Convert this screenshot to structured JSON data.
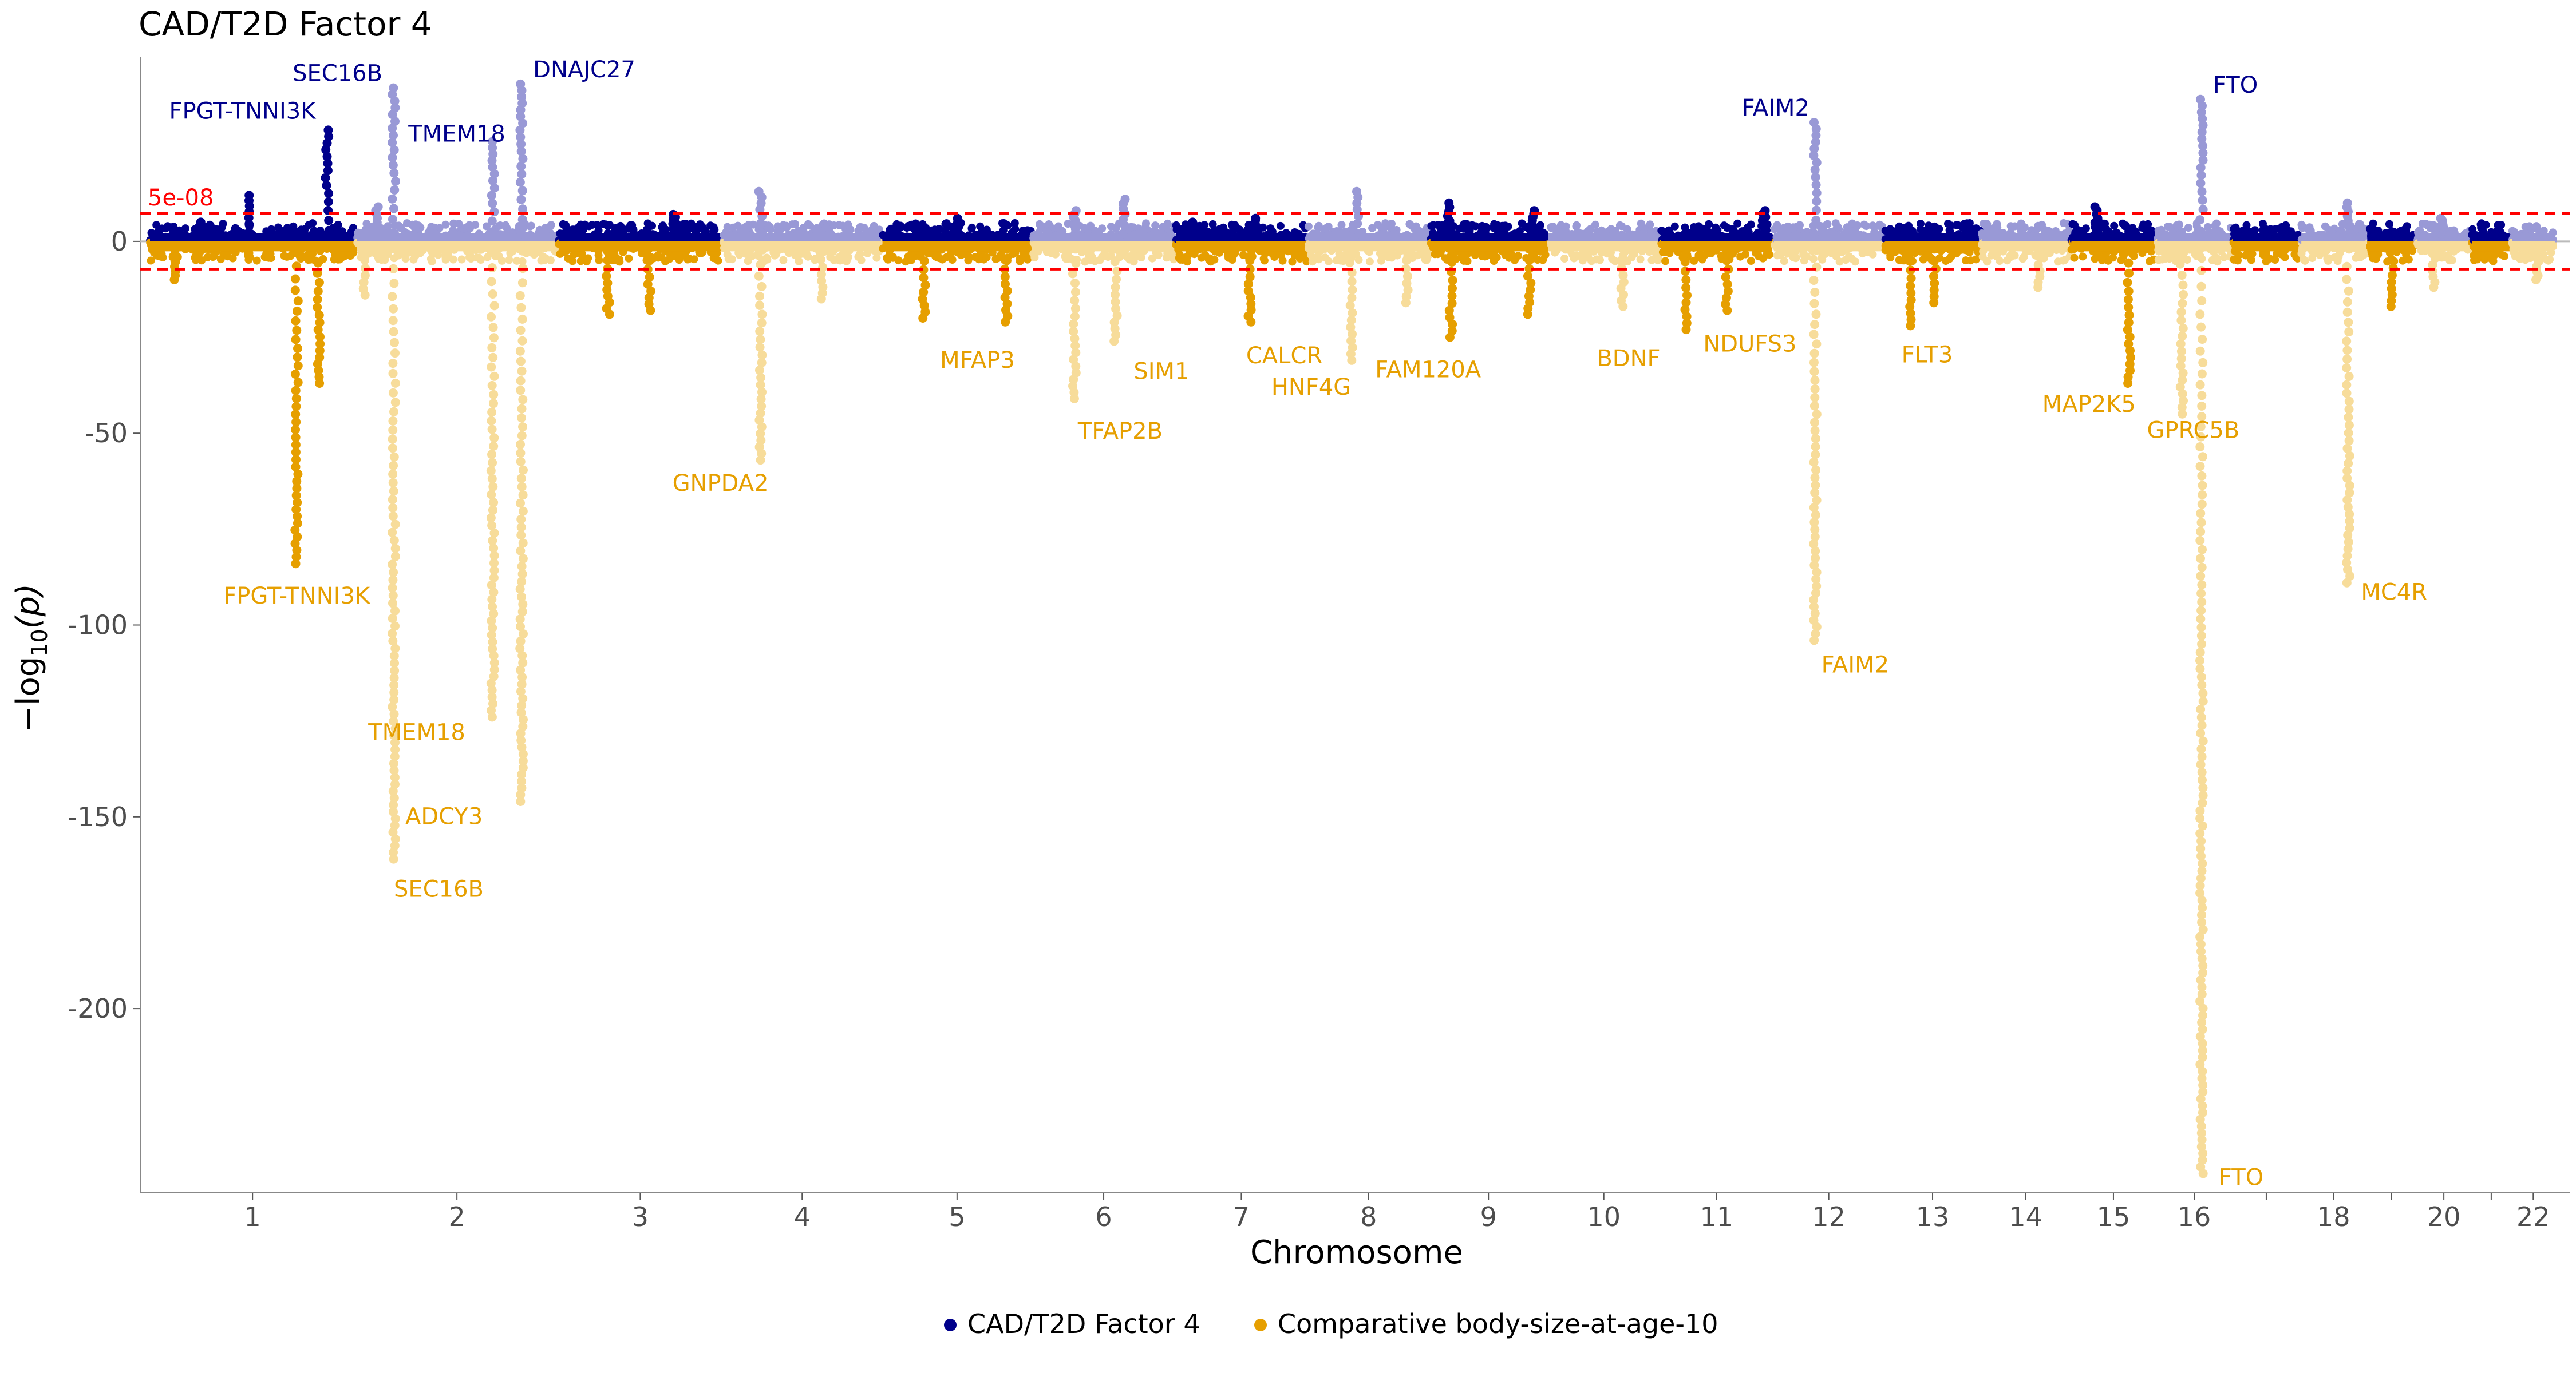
{
  "chart_data": {
    "type": "scatter",
    "subtype": "miami-manhattan",
    "title": "CAD/T2D Factor 4",
    "xlabel": "Chromosome",
    "ylabel": "-log10(p)",
    "ylim": [
      -248,
      48
    ],
    "yticks": [
      0,
      -50,
      -100,
      -150,
      -200
    ],
    "ytick_labels": [
      "0",
      "-50",
      "-100",
      "-150",
      "-200"
    ],
    "threshold": {
      "value": 7.3,
      "label": "5e-08",
      "color": "#ff0000"
    },
    "chromosomes": [
      {
        "chr": "1",
        "size": 249,
        "label": "1"
      },
      {
        "chr": "2",
        "size": 243,
        "label": "2"
      },
      {
        "chr": "3",
        "size": 198,
        "label": "3"
      },
      {
        "chr": "4",
        "size": 191,
        "label": "4"
      },
      {
        "chr": "5",
        "size": 181,
        "label": "5"
      },
      {
        "chr": "6",
        "size": 171,
        "label": "6"
      },
      {
        "chr": "7",
        "size": 159,
        "label": "7"
      },
      {
        "chr": "8",
        "size": 146,
        "label": "8"
      },
      {
        "chr": "9",
        "size": 141,
        "label": "9"
      },
      {
        "chr": "10",
        "size": 135,
        "label": "10"
      },
      {
        "chr": "11",
        "size": 135,
        "label": "11"
      },
      {
        "chr": "12",
        "size": 133,
        "label": "12"
      },
      {
        "chr": "13",
        "size": 115,
        "label": "13"
      },
      {
        "chr": "14",
        "size": 107,
        "label": "14"
      },
      {
        "chr": "15",
        "size": 102,
        "label": "15"
      },
      {
        "chr": "16",
        "size": 90,
        "label": "16"
      },
      {
        "chr": "17",
        "size": 81,
        "label": ""
      },
      {
        "chr": "18",
        "size": 78,
        "label": "18"
      },
      {
        "chr": "19",
        "size": 59,
        "label": ""
      },
      {
        "chr": "20",
        "size": 64,
        "label": "20"
      },
      {
        "chr": "21",
        "size": 47,
        "label": ""
      },
      {
        "chr": "22",
        "size": 51,
        "label": "22"
      }
    ],
    "series": [
      {
        "name": "CAD/T2D Factor 4",
        "color": "#00008b",
        "color_alt": "#9999d6",
        "direction": "up"
      },
      {
        "name": "Comparative body-size-at-age-10",
        "color": "#e69f00",
        "color_alt": "#f7dc9a",
        "direction": "down"
      }
    ],
    "peaks_top": [
      {
        "chr": "1",
        "pos": 215,
        "logp": 29
      },
      {
        "chr": "1",
        "pos": 120,
        "logp": 12
      },
      {
        "chr": "1",
        "pos": 60,
        "logp": 5
      },
      {
        "chr": "2",
        "pos": 45,
        "logp": 40
      },
      {
        "chr": "2",
        "pos": 25,
        "logp": 9
      },
      {
        "chr": "2",
        "pos": 165,
        "logp": 26
      },
      {
        "chr": "2",
        "pos": 200,
        "logp": 41
      },
      {
        "chr": "3",
        "pos": 140,
        "logp": 7
      },
      {
        "chr": "4",
        "pos": 45,
        "logp": 13
      },
      {
        "chr": "5",
        "pos": 90,
        "logp": 6
      },
      {
        "chr": "6",
        "pos": 50,
        "logp": 8
      },
      {
        "chr": "6",
        "pos": 110,
        "logp": 11
      },
      {
        "chr": "7",
        "pos": 20,
        "logp": 5
      },
      {
        "chr": "7",
        "pos": 95,
        "logp": 6
      },
      {
        "chr": "8",
        "pos": 60,
        "logp": 13
      },
      {
        "chr": "9",
        "pos": 22,
        "logp": 10
      },
      {
        "chr": "9",
        "pos": 125,
        "logp": 8
      },
      {
        "chr": "11",
        "pos": 125,
        "logp": 8
      },
      {
        "chr": "12",
        "pos": 50,
        "logp": 31
      },
      {
        "chr": "15",
        "pos": 30,
        "logp": 9
      },
      {
        "chr": "16",
        "pos": 54,
        "logp": 37
      },
      {
        "chr": "18",
        "pos": 57,
        "logp": 10
      },
      {
        "chr": "20",
        "pos": 30,
        "logp": 6
      }
    ],
    "peaks_bottom": [
      {
        "chr": "1",
        "pos": 30,
        "logp": 10
      },
      {
        "chr": "1",
        "pos": 178,
        "logp": 84
      },
      {
        "chr": "1",
        "pos": 205,
        "logp": 37
      },
      {
        "chr": "2",
        "pos": 45,
        "logp": 161
      },
      {
        "chr": "2",
        "pos": 10,
        "logp": 14
      },
      {
        "chr": "2",
        "pos": 165,
        "logp": 124
      },
      {
        "chr": "2",
        "pos": 200,
        "logp": 146
      },
      {
        "chr": "3",
        "pos": 60,
        "logp": 19
      },
      {
        "chr": "3",
        "pos": 110,
        "logp": 18
      },
      {
        "chr": "4",
        "pos": 45,
        "logp": 57
      },
      {
        "chr": "4",
        "pos": 120,
        "logp": 15
      },
      {
        "chr": "5",
        "pos": 50,
        "logp": 20
      },
      {
        "chr": "5",
        "pos": 150,
        "logp": 21
      },
      {
        "chr": "6",
        "pos": 50,
        "logp": 41
      },
      {
        "chr": "6",
        "pos": 100,
        "logp": 26
      },
      {
        "chr": "7",
        "pos": 90,
        "logp": 21
      },
      {
        "chr": "8",
        "pos": 52,
        "logp": 31
      },
      {
        "chr": "8",
        "pos": 120,
        "logp": 16
      },
      {
        "chr": "9",
        "pos": 25,
        "logp": 25
      },
      {
        "chr": "9",
        "pos": 120,
        "logp": 19
      },
      {
        "chr": "10",
        "pos": 90,
        "logp": 17
      },
      {
        "chr": "11",
        "pos": 30,
        "logp": 23
      },
      {
        "chr": "11",
        "pos": 80,
        "logp": 18
      },
      {
        "chr": "12",
        "pos": 50,
        "logp": 104
      },
      {
        "chr": "13",
        "pos": 30,
        "logp": 22
      },
      {
        "chr": "13",
        "pos": 60,
        "logp": 16
      },
      {
        "chr": "14",
        "pos": 70,
        "logp": 12
      },
      {
        "chr": "15",
        "pos": 70,
        "logp": 37
      },
      {
        "chr": "16",
        "pos": 30,
        "logp": 45
      },
      {
        "chr": "16",
        "pos": 54,
        "logp": 243
      },
      {
        "chr": "18",
        "pos": 57,
        "logp": 89
      },
      {
        "chr": "19",
        "pos": 30,
        "logp": 17
      },
      {
        "chr": "20",
        "pos": 20,
        "logp": 12
      },
      {
        "chr": "22",
        "pos": 30,
        "logp": 10
      }
    ],
    "annotations_top": [
      {
        "gene": "SEC16B",
        "chr": "2",
        "pos": 45,
        "logp": 40
      },
      {
        "gene": "DNAJC27",
        "chr": "2",
        "pos": 200,
        "logp": 41
      },
      {
        "gene": "FPGT-TNNI3K",
        "chr": "1",
        "pos": 215,
        "logp": 29
      },
      {
        "gene": "TMEM18",
        "chr": "2",
        "pos": 50,
        "logp": 26
      },
      {
        "gene": "FAIM2",
        "chr": "12",
        "pos": 50,
        "logp": 31
      },
      {
        "gene": "FTO",
        "chr": "16",
        "pos": 54,
        "logp": 37
      }
    ],
    "annotations_bottom": [
      {
        "gene": "FPGT-TNNI3K",
        "chr": "1",
        "pos": 178,
        "logp": 84
      },
      {
        "gene": "TMEM18",
        "chr": "2",
        "pos": 45,
        "logp": 124
      },
      {
        "gene": "ADCY3",
        "chr": "2",
        "pos": 45,
        "logp": 148
      },
      {
        "gene": "SEC16B",
        "chr": "2",
        "pos": 45,
        "logp": 161
      },
      {
        "gene": "GNPDA2",
        "chr": "4",
        "pos": 45,
        "logp": 57
      },
      {
        "gene": "MFAP3",
        "chr": "5",
        "pos": 150,
        "logp": 24
      },
      {
        "gene": "TFAP2B",
        "chr": "6",
        "pos": 50,
        "logp": 41
      },
      {
        "gene": "SIM1",
        "chr": "6",
        "pos": 100,
        "logp": 26
      },
      {
        "gene": "CALCR",
        "chr": "7",
        "pos": 90,
        "logp": 24
      },
      {
        "gene": "HNF4G",
        "chr": "8",
        "pos": 52,
        "logp": 31
      },
      {
        "gene": "FAM120A",
        "chr": "9",
        "pos": 25,
        "logp": 25
      },
      {
        "gene": "BDNF",
        "chr": "11",
        "pos": 30,
        "logp": 23
      },
      {
        "gene": "NDUFS3",
        "chr": "11",
        "pos": 80,
        "logp": 18
      },
      {
        "gene": "FAIM2",
        "chr": "12",
        "pos": 50,
        "logp": 104
      },
      {
        "gene": "FLT3",
        "chr": "13",
        "pos": 30,
        "logp": 22
      },
      {
        "gene": "MAP2K5",
        "chr": "15",
        "pos": 70,
        "logp": 37
      },
      {
        "gene": "GPRC5B",
        "chr": "16",
        "pos": 30,
        "logp": 45
      },
      {
        "gene": "FTO",
        "chr": "16",
        "pos": 54,
        "logp": 243
      },
      {
        "gene": "MC4R",
        "chr": "18",
        "pos": 57,
        "logp": 89
      }
    ]
  }
}
